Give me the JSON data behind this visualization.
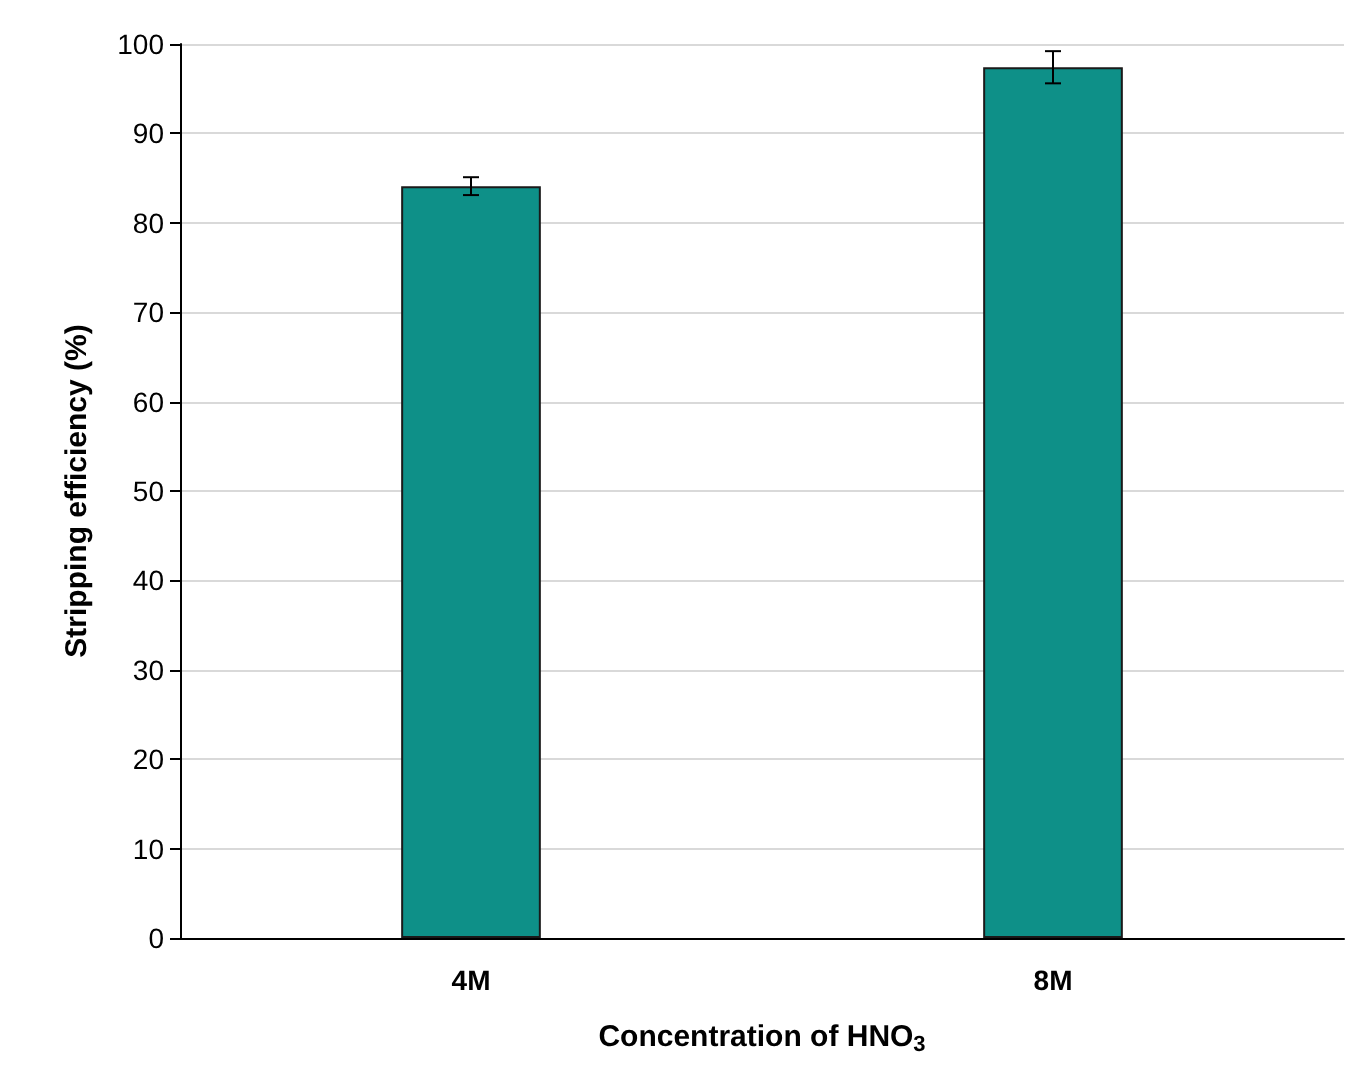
{
  "chart_data": {
    "type": "bar",
    "xlabel": "Concentration of HNO$_{3}$",
    "ylabel": "Stripping efficiency (%)",
    "categories": [
      "4M",
      "8M"
    ],
    "values": [
      84.1,
      97.4
    ],
    "errors": [
      1.0,
      1.8
    ],
    "color": "#0e9088",
    "ylim": [
      0,
      100
    ],
    "yticks": [
      0,
      10,
      20,
      30,
      40,
      50,
      60,
      70,
      80,
      90,
      100
    ],
    "grid": "y"
  }
}
